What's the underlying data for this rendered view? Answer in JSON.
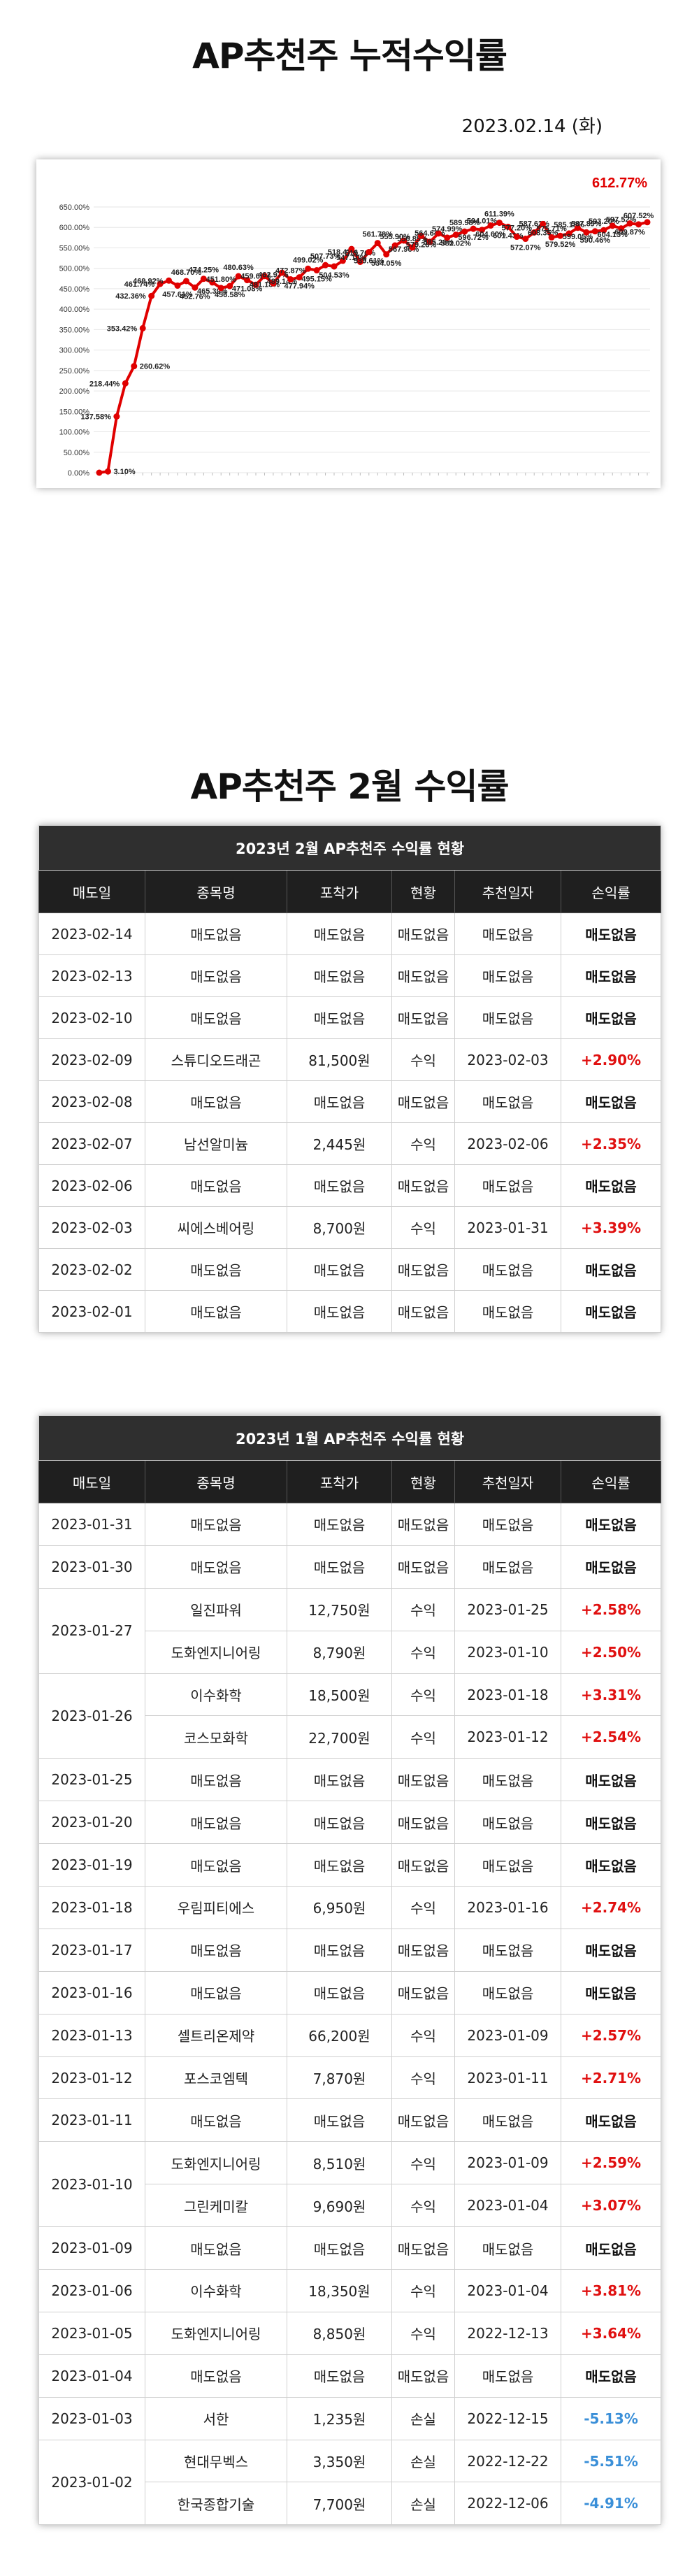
{
  "title1": "AP추천주 누적수익률",
  "date": "2023.02.14 (화)",
  "chart_data": {
    "type": "line",
    "title": "",
    "xlabel": "",
    "ylabel": "",
    "ylim": [
      0,
      650
    ],
    "yticks": [
      "0.00%",
      "50.00%",
      "100.00%",
      "150.00%",
      "200.00%",
      "250.00%",
      "300.00%",
      "350.00%",
      "400.00%",
      "450.00%",
      "500.00%",
      "550.00%",
      "600.00%",
      "650.00%"
    ],
    "highlight_label": "612.77%",
    "colors": {
      "line": "#e00000",
      "marker": "#e00000",
      "highlight": "#e00000"
    },
    "series": [
      {
        "values": [
          0,
          3.1,
          137.58,
          218.44,
          260.62,
          353.42,
          432.36,
          461.74,
          469.92,
          457.61,
          468.7,
          452.76,
          474.25,
          465.39,
          451.8,
          456.58,
          480.63,
          471.08,
          459.69,
          481.18,
          462.97,
          489.14,
          472.87,
          477.94,
          499.02,
          495.15,
          507.73,
          504.53,
          518.47,
          547.1,
          515.76,
          539.61,
          561.78,
          534.05,
          555.9,
          567.96,
          550.85,
          579.28,
          564.64,
          585.28,
          574.99,
          582.02,
          589.98,
          596.72,
          594.01,
          604.6,
          611.39,
          601.43,
          577.2,
          572.07,
          587.62,
          608.35,
          575.71,
          579.52,
          585.18,
          599.05,
          587.89,
          590.46,
          593.2,
          604.13,
          597.52,
          609.87,
          607.52,
          612.77
        ],
        "labels": [
          "",
          "3.10%",
          "137.58%",
          "218.44%",
          "260.62%",
          "353.42%",
          "432.36%",
          "461.74%",
          "469.92%",
          "457.61%",
          "468.70%",
          "452.76%",
          "474.25%",
          "465.39%",
          "451.80%",
          "456.58%",
          "480.63%",
          "471.08%",
          "459.69%",
          "481.18%",
          "462.97%",
          "489.14%",
          "472.87%",
          "477.94%",
          "499.02%",
          "495.15%",
          "507.73%",
          "504.53%",
          "518.47%",
          "547.10%",
          "515.76%",
          "539.61%",
          "561.78%",
          "534.05%",
          "555.90%",
          "567.96%",
          "550.85%",
          "579.28%",
          "564.64%",
          "585.28%",
          "574.99%",
          "582.02%",
          "589.98%",
          "596.72%",
          "594.01%",
          "604.60%",
          "611.39%",
          "601.43%",
          "577.20%",
          "572.07%",
          "587.62%",
          "608.35%",
          "575.71%",
          "579.52%",
          "585.18%",
          "599.05%",
          "587.89%",
          "590.46%",
          "593.20%",
          "604.13%",
          "597.52%",
          "609.87%",
          "607.52%",
          ""
        ]
      }
    ]
  },
  "title2": "AP추천주 2월 수익률",
  "headers": [
    "매도일",
    "종목명",
    "포착가",
    "현황",
    "추천일자",
    "손익률"
  ],
  "feb": {
    "caption": "2023년 2월 AP추천주 수익률 현황",
    "rows": [
      {
        "date": "2023-02-14",
        "items": [
          {
            "name": "매도없음",
            "price": "매도없음",
            "status": "매도없음",
            "rec": "매도없음",
            "pl": "매도없음",
            "cls": "neu"
          }
        ]
      },
      {
        "date": "2023-02-13",
        "items": [
          {
            "name": "매도없음",
            "price": "매도없음",
            "status": "매도없음",
            "rec": "매도없음",
            "pl": "매도없음",
            "cls": "neu"
          }
        ]
      },
      {
        "date": "2023-02-10",
        "items": [
          {
            "name": "매도없음",
            "price": "매도없음",
            "status": "매도없음",
            "rec": "매도없음",
            "pl": "매도없음",
            "cls": "neu"
          }
        ]
      },
      {
        "date": "2023-02-09",
        "items": [
          {
            "name": "스튜디오드래곤",
            "price": "81,500원",
            "status": "수익",
            "rec": "2023-02-03",
            "pl": "+2.90%",
            "cls": "pos"
          }
        ]
      },
      {
        "date": "2023-02-08",
        "items": [
          {
            "name": "매도없음",
            "price": "매도없음",
            "status": "매도없음",
            "rec": "매도없음",
            "pl": "매도없음",
            "cls": "neu"
          }
        ]
      },
      {
        "date": "2023-02-07",
        "items": [
          {
            "name": "남선알미늄",
            "price": "2,445원",
            "status": "수익",
            "rec": "2023-02-06",
            "pl": "+2.35%",
            "cls": "pos"
          }
        ]
      },
      {
        "date": "2023-02-06",
        "items": [
          {
            "name": "매도없음",
            "price": "매도없음",
            "status": "매도없음",
            "rec": "매도없음",
            "pl": "매도없음",
            "cls": "neu"
          }
        ]
      },
      {
        "date": "2023-02-03",
        "items": [
          {
            "name": "씨에스베어링",
            "price": "8,700원",
            "status": "수익",
            "rec": "2023-01-31",
            "pl": "+3.39%",
            "cls": "pos"
          }
        ]
      },
      {
        "date": "2023-02-02",
        "items": [
          {
            "name": "매도없음",
            "price": "매도없음",
            "status": "매도없음",
            "rec": "매도없음",
            "pl": "매도없음",
            "cls": "neu"
          }
        ]
      },
      {
        "date": "2023-02-01",
        "items": [
          {
            "name": "매도없음",
            "price": "매도없음",
            "status": "매도없음",
            "rec": "매도없음",
            "pl": "매도없음",
            "cls": "neu"
          }
        ]
      }
    ]
  },
  "jan": {
    "caption": "2023년 1월 AP추천주 수익률 현황",
    "rows": [
      {
        "date": "2023-01-31",
        "items": [
          {
            "name": "매도없음",
            "price": "매도없음",
            "status": "매도없음",
            "rec": "매도없음",
            "pl": "매도없음",
            "cls": "neu"
          }
        ]
      },
      {
        "date": "2023-01-30",
        "items": [
          {
            "name": "매도없음",
            "price": "매도없음",
            "status": "매도없음",
            "rec": "매도없음",
            "pl": "매도없음",
            "cls": "neu"
          }
        ]
      },
      {
        "date": "2023-01-27",
        "items": [
          {
            "name": "일진파워",
            "price": "12,750원",
            "status": "수익",
            "rec": "2023-01-25",
            "pl": "+2.58%",
            "cls": "pos"
          },
          {
            "name": "도화엔지니어링",
            "price": "8,790원",
            "status": "수익",
            "rec": "2023-01-10",
            "pl": "+2.50%",
            "cls": "pos"
          }
        ]
      },
      {
        "date": "2023-01-26",
        "items": [
          {
            "name": "이수화학",
            "price": "18,500원",
            "status": "수익",
            "rec": "2023-01-18",
            "pl": "+3.31%",
            "cls": "pos"
          },
          {
            "name": "코스모화학",
            "price": "22,700원",
            "status": "수익",
            "rec": "2023-01-12",
            "pl": "+2.54%",
            "cls": "pos"
          }
        ]
      },
      {
        "date": "2023-01-25",
        "items": [
          {
            "name": "매도없음",
            "price": "매도없음",
            "status": "매도없음",
            "rec": "매도없음",
            "pl": "매도없음",
            "cls": "neu"
          }
        ]
      },
      {
        "date": "2023-01-20",
        "items": [
          {
            "name": "매도없음",
            "price": "매도없음",
            "status": "매도없음",
            "rec": "매도없음",
            "pl": "매도없음",
            "cls": "neu"
          }
        ]
      },
      {
        "date": "2023-01-19",
        "items": [
          {
            "name": "매도없음",
            "price": "매도없음",
            "status": "매도없음",
            "rec": "매도없음",
            "pl": "매도없음",
            "cls": "neu"
          }
        ]
      },
      {
        "date": "2023-01-18",
        "items": [
          {
            "name": "우림피티에스",
            "price": "6,950원",
            "status": "수익",
            "rec": "2023-01-16",
            "pl": "+2.74%",
            "cls": "pos"
          }
        ]
      },
      {
        "date": "2023-01-17",
        "items": [
          {
            "name": "매도없음",
            "price": "매도없음",
            "status": "매도없음",
            "rec": "매도없음",
            "pl": "매도없음",
            "cls": "neu"
          }
        ]
      },
      {
        "date": "2023-01-16",
        "items": [
          {
            "name": "매도없음",
            "price": "매도없음",
            "status": "매도없음",
            "rec": "매도없음",
            "pl": "매도없음",
            "cls": "neu"
          }
        ]
      },
      {
        "date": "2023-01-13",
        "items": [
          {
            "name": "셀트리온제약",
            "price": "66,200원",
            "status": "수익",
            "rec": "2023-01-09",
            "pl": "+2.57%",
            "cls": "pos"
          }
        ]
      },
      {
        "date": "2023-01-12",
        "items": [
          {
            "name": "포스코엠텍",
            "price": "7,870원",
            "status": "수익",
            "rec": "2023-01-11",
            "pl": "+2.71%",
            "cls": "pos"
          }
        ]
      },
      {
        "date": "2023-01-11",
        "items": [
          {
            "name": "매도없음",
            "price": "매도없음",
            "status": "매도없음",
            "rec": "매도없음",
            "pl": "매도없음",
            "cls": "neu"
          }
        ]
      },
      {
        "date": "2023-01-10",
        "items": [
          {
            "name": "도화엔지니어링",
            "price": "8,510원",
            "status": "수익",
            "rec": "2023-01-09",
            "pl": "+2.59%",
            "cls": "pos"
          },
          {
            "name": "그린케미칼",
            "price": "9,690원",
            "status": "수익",
            "rec": "2023-01-04",
            "pl": "+3.07%",
            "cls": "pos"
          }
        ]
      },
      {
        "date": "2023-01-09",
        "items": [
          {
            "name": "매도없음",
            "price": "매도없음",
            "status": "매도없음",
            "rec": "매도없음",
            "pl": "매도없음",
            "cls": "neu"
          }
        ]
      },
      {
        "date": "2023-01-06",
        "items": [
          {
            "name": "이수화학",
            "price": "18,350원",
            "status": "수익",
            "rec": "2023-01-04",
            "pl": "+3.81%",
            "cls": "pos"
          }
        ]
      },
      {
        "date": "2023-01-05",
        "items": [
          {
            "name": "도화엔지니어링",
            "price": "8,850원",
            "status": "수익",
            "rec": "2022-12-13",
            "pl": "+3.64%",
            "cls": "pos"
          }
        ]
      },
      {
        "date": "2023-01-04",
        "items": [
          {
            "name": "매도없음",
            "price": "매도없음",
            "status": "매도없음",
            "rec": "매도없음",
            "pl": "매도없음",
            "cls": "neu"
          }
        ]
      },
      {
        "date": "2023-01-03",
        "items": [
          {
            "name": "서한",
            "price": "1,235원",
            "status": "손실",
            "rec": "2022-12-15",
            "pl": "-5.13%",
            "cls": "neg"
          }
        ]
      },
      {
        "date": "2023-01-02",
        "items": [
          {
            "name": "현대무벡스",
            "price": "3,350원",
            "status": "손실",
            "rec": "2022-12-22",
            "pl": "-5.51%",
            "cls": "neg"
          },
          {
            "name": "한국종합기술",
            "price": "7,700원",
            "status": "손실",
            "rec": "2022-12-06",
            "pl": "-4.91%",
            "cls": "neg"
          }
        ]
      }
    ]
  }
}
